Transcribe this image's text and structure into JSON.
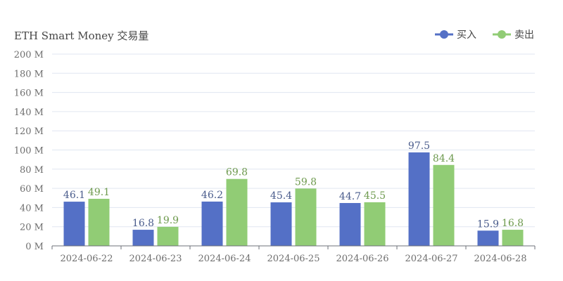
{
  "chart_data": {
    "type": "bar",
    "title": "ETH Smart Money 交易量",
    "categories": [
      "2024-06-22",
      "2024-06-23",
      "2024-06-24",
      "2024-06-25",
      "2024-06-26",
      "2024-06-27",
      "2024-06-28"
    ],
    "series": [
      {
        "name": "买入",
        "color": "#5470c6",
        "values": [
          46.1,
          16.8,
          46.2,
          45.4,
          44.7,
          97.5,
          15.9
        ]
      },
      {
        "name": "卖出",
        "color": "#91cc75",
        "values": [
          49.1,
          19.9,
          69.8,
          59.8,
          45.5,
          84.4,
          16.8
        ]
      }
    ],
    "y_ticks": [
      "0 M",
      "20 M",
      "40 M",
      "60 M",
      "80 M",
      "100 M",
      "120 M",
      "140 M",
      "160 M",
      "180 M",
      "200 M"
    ],
    "ylim": [
      0,
      200
    ],
    "y_step": 20,
    "grid": true,
    "legend_position": "top-right"
  }
}
